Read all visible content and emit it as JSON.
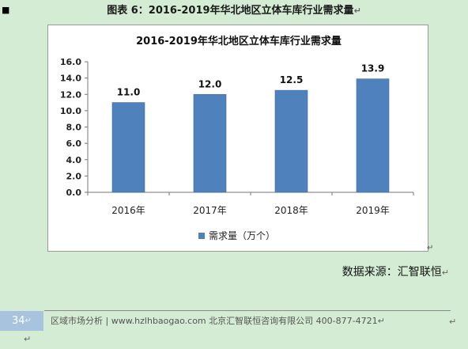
{
  "caption": "图表 6：2016-2019年华北地区立体车库行业需求量",
  "paragraph_mark": "↵",
  "source": "数据来源：汇智联恒",
  "footer": {
    "page_number": "34",
    "text": "区域市场分析 | www.hzlhbaogao.com 北京汇智联恒咨询有限公司   400-877-4721"
  },
  "chart_data": {
    "type": "bar",
    "title": "2016-2019年华北地区立体车库行业需求量",
    "categories": [
      "2016年",
      "2017年",
      "2018年",
      "2019年"
    ],
    "series": [
      {
        "name": "需求量（万个）",
        "values": [
          11.0,
          12.0,
          12.5,
          13.9
        ],
        "labels": [
          "11.0",
          "12.0",
          "12.5",
          "13.9"
        ]
      }
    ],
    "ylim": [
      0,
      16
    ],
    "yticks": [
      "0.0",
      "2.0",
      "4.0",
      "6.0",
      "8.0",
      "10.0",
      "12.0",
      "14.0",
      "16.0"
    ],
    "xlabel": "",
    "ylabel": "",
    "bar_color": "#4f81bd",
    "legend_position": "bottom",
    "grid": false
  }
}
